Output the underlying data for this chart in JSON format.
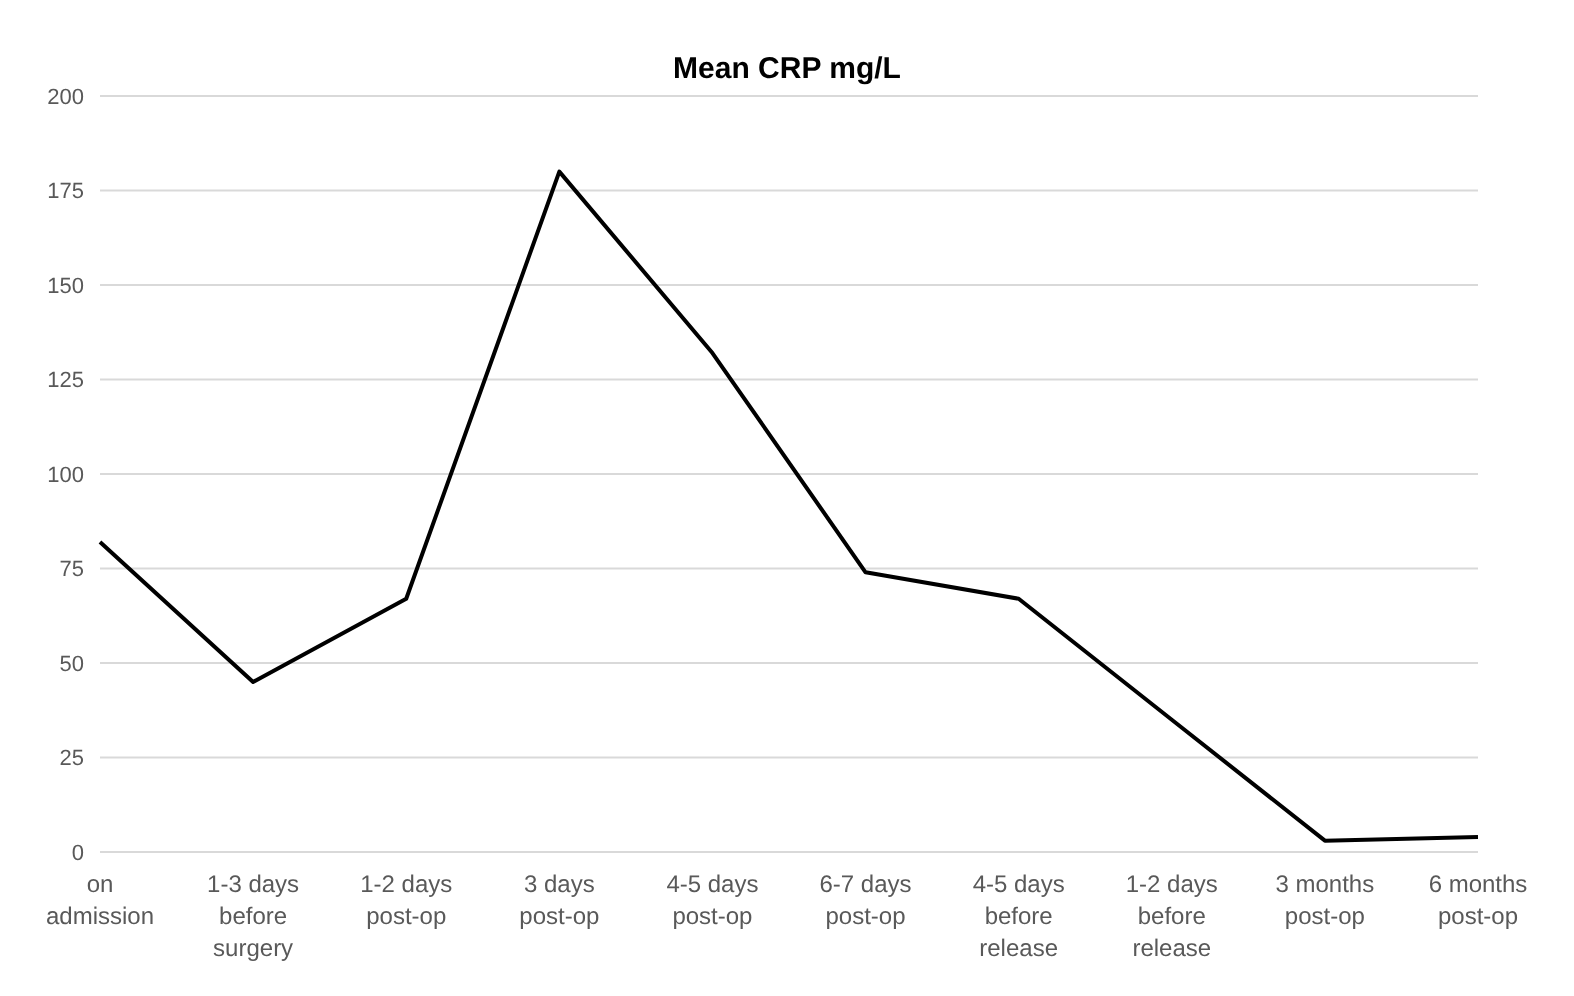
{
  "chart_data": {
    "type": "line",
    "title": "Mean CRP mg/L",
    "categories": [
      "on admission",
      "1-3 days before surgery",
      "1-2 days post-op",
      "3 days post-op",
      "4-5 days post-op",
      "6-7 days post-op",
      "4-5 days before release",
      "1-2 days before release",
      "3 months post-op",
      "6 months post-op"
    ],
    "series": [
      {
        "color": "#000000",
        "values": [
          82,
          45,
          67,
          180,
          132,
          74,
          67,
          35,
          3,
          4
        ]
      }
    ],
    "ylim": [
      0,
      200
    ],
    "yticks": [
      0,
      25,
      50,
      75,
      100,
      125,
      150,
      175,
      200
    ],
    "grid": "y",
    "legend": false,
    "marker": "none",
    "line_style": "solid"
  }
}
